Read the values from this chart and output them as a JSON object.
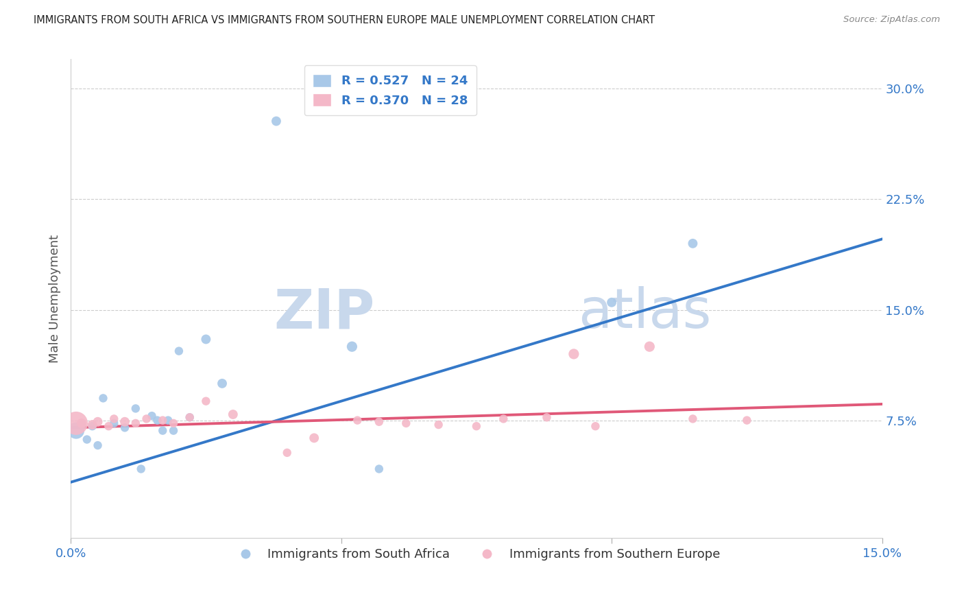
{
  "title": "IMMIGRANTS FROM SOUTH AFRICA VS IMMIGRANTS FROM SOUTHERN EUROPE MALE UNEMPLOYMENT CORRELATION CHART",
  "source": "Source: ZipAtlas.com",
  "ylabel": "Male Unemployment",
  "y_ticks": [
    0.075,
    0.15,
    0.225,
    0.3
  ],
  "y_tick_labels": [
    "7.5%",
    "15.0%",
    "22.5%",
    "30.0%"
  ],
  "xlim": [
    0.0,
    0.15
  ],
  "ylim": [
    -0.005,
    0.32
  ],
  "blue_color": "#a8c8e8",
  "pink_color": "#f4b8c8",
  "blue_line_color": "#3478c8",
  "pink_line_color": "#e05878",
  "legend_R1": "R = 0.527",
  "legend_N1": "N = 24",
  "legend_R2": "R = 0.370",
  "legend_N2": "N = 28",
  "legend_label1": "Immigrants from South Africa",
  "legend_label2": "Immigrants from Southern Europe",
  "blue_scatter_x": [
    0.001,
    0.002,
    0.003,
    0.004,
    0.005,
    0.006,
    0.008,
    0.01,
    0.012,
    0.013,
    0.015,
    0.016,
    0.017,
    0.018,
    0.019,
    0.02,
    0.022,
    0.025,
    0.028,
    0.038,
    0.052,
    0.057,
    0.1,
    0.115
  ],
  "blue_scatter_y": [
    0.068,
    0.072,
    0.062,
    0.071,
    0.058,
    0.09,
    0.073,
    0.07,
    0.083,
    0.042,
    0.078,
    0.075,
    0.068,
    0.075,
    0.068,
    0.122,
    0.077,
    0.13,
    0.1,
    0.278,
    0.125,
    0.042,
    0.155,
    0.195
  ],
  "blue_scatter_size": [
    300,
    80,
    80,
    80,
    80,
    80,
    80,
    80,
    80,
    80,
    80,
    80,
    80,
    80,
    80,
    80,
    80,
    100,
    100,
    100,
    120,
    80,
    100,
    100
  ],
  "pink_scatter_x": [
    0.001,
    0.002,
    0.004,
    0.005,
    0.007,
    0.008,
    0.01,
    0.012,
    0.014,
    0.017,
    0.019,
    0.022,
    0.025,
    0.03,
    0.04,
    0.045,
    0.053,
    0.057,
    0.062,
    0.068,
    0.075,
    0.08,
    0.088,
    0.093,
    0.097,
    0.107,
    0.115,
    0.125
  ],
  "pink_scatter_y": [
    0.073,
    0.073,
    0.072,
    0.074,
    0.071,
    0.076,
    0.074,
    0.073,
    0.076,
    0.075,
    0.073,
    0.077,
    0.088,
    0.079,
    0.053,
    0.063,
    0.075,
    0.074,
    0.073,
    0.072,
    0.071,
    0.076,
    0.077,
    0.12,
    0.071,
    0.125,
    0.076,
    0.075
  ],
  "pink_scatter_size": [
    600,
    100,
    100,
    100,
    80,
    80,
    100,
    80,
    80,
    80,
    80,
    80,
    80,
    100,
    80,
    100,
    80,
    80,
    80,
    80,
    80,
    80,
    80,
    120,
    80,
    120,
    80,
    80
  ],
  "blue_trend_x": [
    0.0,
    0.15
  ],
  "blue_trend_y": [
    0.033,
    0.198
  ],
  "pink_trend_x": [
    0.0,
    0.15
  ],
  "pink_trend_y": [
    0.07,
    0.086
  ],
  "watermark_zip": "ZIP",
  "watermark_atlas": "atlas",
  "watermark_color": "#c8d8ec"
}
